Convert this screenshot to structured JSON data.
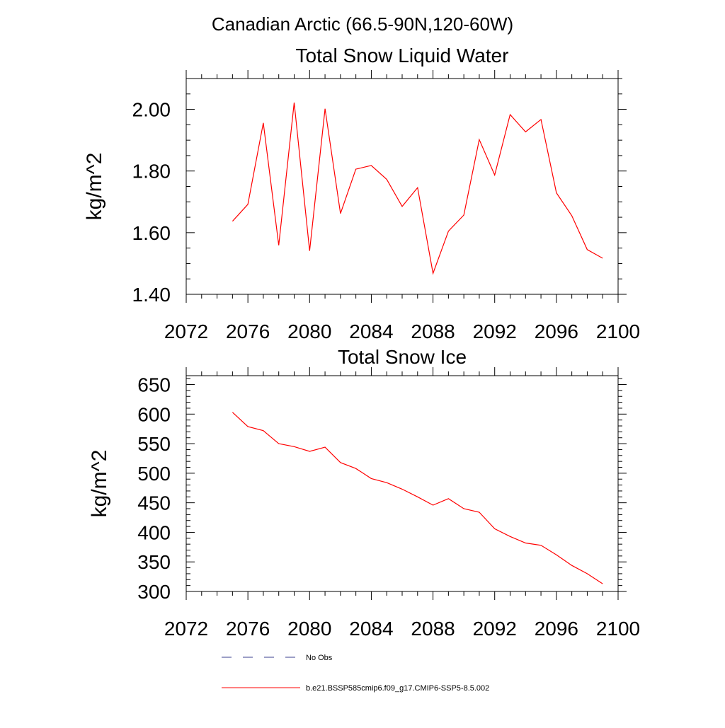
{
  "figure": {
    "title": "Canadian Arctic (66.5-90N,120-60W)"
  },
  "legend": {
    "items": [
      {
        "label": "No Obs",
        "color": "#3a3f8f",
        "dash": "dashed"
      },
      {
        "label": "b.e21.BSSP585cmip6.f09_g17.CMIP6-SSP5-8.5.002",
        "color": "#ff0000",
        "dash": "solid"
      }
    ]
  },
  "chart_data": [
    {
      "type": "line",
      "title": "Total Snow Liquid Water",
      "xlabel": "",
      "ylabel": "kg/m^2",
      "xlim": [
        2072,
        2100
      ],
      "ylim": [
        1.4,
        2.1
      ],
      "x_ticks": [
        2072,
        2076,
        2080,
        2084,
        2088,
        2092,
        2096,
        2100
      ],
      "y_ticks": [
        1.4,
        1.6,
        1.8,
        2.0
      ],
      "y_tick_decimals": 2,
      "x_minor_step": 1,
      "y_minor_step": 0.05,
      "grid": false,
      "x": [
        2075,
        2076,
        2077,
        2078,
        2079,
        2080,
        2081,
        2082,
        2083,
        2084,
        2085,
        2086,
        2087,
        2088,
        2089,
        2090,
        2091,
        2092,
        2093,
        2094,
        2095,
        2096,
        2097,
        2098,
        2099
      ],
      "series": [
        {
          "color": "#ff0000",
          "values": [
            1.637,
            1.692,
            1.956,
            1.559,
            2.022,
            1.541,
            2.002,
            1.662,
            1.806,
            1.818,
            1.773,
            1.685,
            1.746,
            1.468,
            1.605,
            1.657,
            1.902,
            1.787,
            1.983,
            1.927,
            1.967,
            1.729,
            1.655,
            1.545,
            1.517
          ]
        }
      ]
    },
    {
      "type": "line",
      "title": "Total Snow Ice",
      "xlabel": "",
      "ylabel": "kg/m^2",
      "xlim": [
        2072,
        2100
      ],
      "ylim": [
        300,
        665
      ],
      "x_ticks": [
        2072,
        2076,
        2080,
        2084,
        2088,
        2092,
        2096,
        2100
      ],
      "y_ticks": [
        300,
        350,
        400,
        450,
        500,
        550,
        600,
        650
      ],
      "y_tick_decimals": 0,
      "x_minor_step": 1,
      "y_minor_step": 10,
      "grid": false,
      "x": [
        2075,
        2076,
        2077,
        2078,
        2079,
        2080,
        2081,
        2082,
        2083,
        2084,
        2085,
        2086,
        2087,
        2088,
        2089,
        2090,
        2091,
        2092,
        2093,
        2094,
        2095,
        2096,
        2097,
        2098,
        2099
      ],
      "series": [
        {
          "color": "#ff0000",
          "values": [
            603,
            579,
            572,
            550,
            545,
            537,
            544,
            518,
            508,
            491,
            484,
            473,
            460,
            446,
            457,
            440,
            434,
            406,
            393,
            382,
            378,
            362,
            344,
            330,
            313
          ]
        }
      ]
    }
  ]
}
